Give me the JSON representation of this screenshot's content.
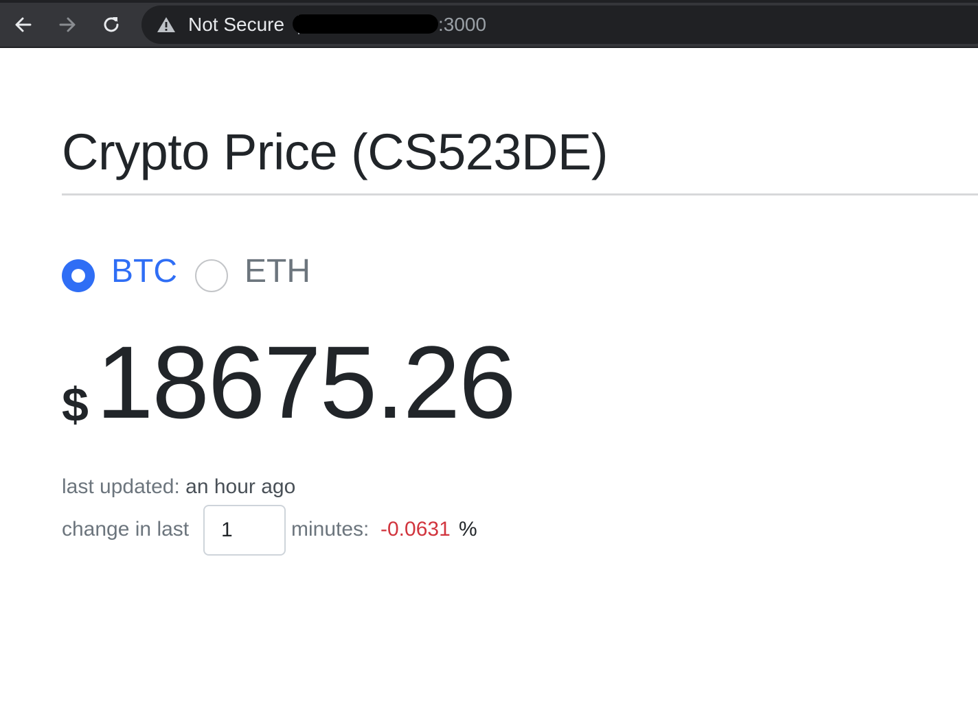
{
  "browser": {
    "security_label": "Not Secure",
    "url_port": ":3000",
    "icons": {
      "back": "arrow-left-icon",
      "forward": "arrow-right-icon",
      "reload": "reload-icon",
      "security": "warning-triangle-icon"
    }
  },
  "page": {
    "title": "Crypto Price (CS523DE)",
    "currencies": [
      {
        "label": "BTC",
        "selected": true
      },
      {
        "label": "ETH",
        "selected": false
      }
    ],
    "price": {
      "currency_symbol": "$",
      "value": "18675.26"
    },
    "last_updated": {
      "label": "last updated:",
      "value": "an hour ago"
    },
    "change": {
      "prefix": "change in last",
      "minutes_value": "1",
      "suffix": "minutes:",
      "value": "-0.0631",
      "unit": "%"
    }
  },
  "colors": {
    "accent": "#2f6ef5",
    "negative": "#d1343d",
    "muted_text": "#6c757d",
    "body_text": "#212529"
  }
}
